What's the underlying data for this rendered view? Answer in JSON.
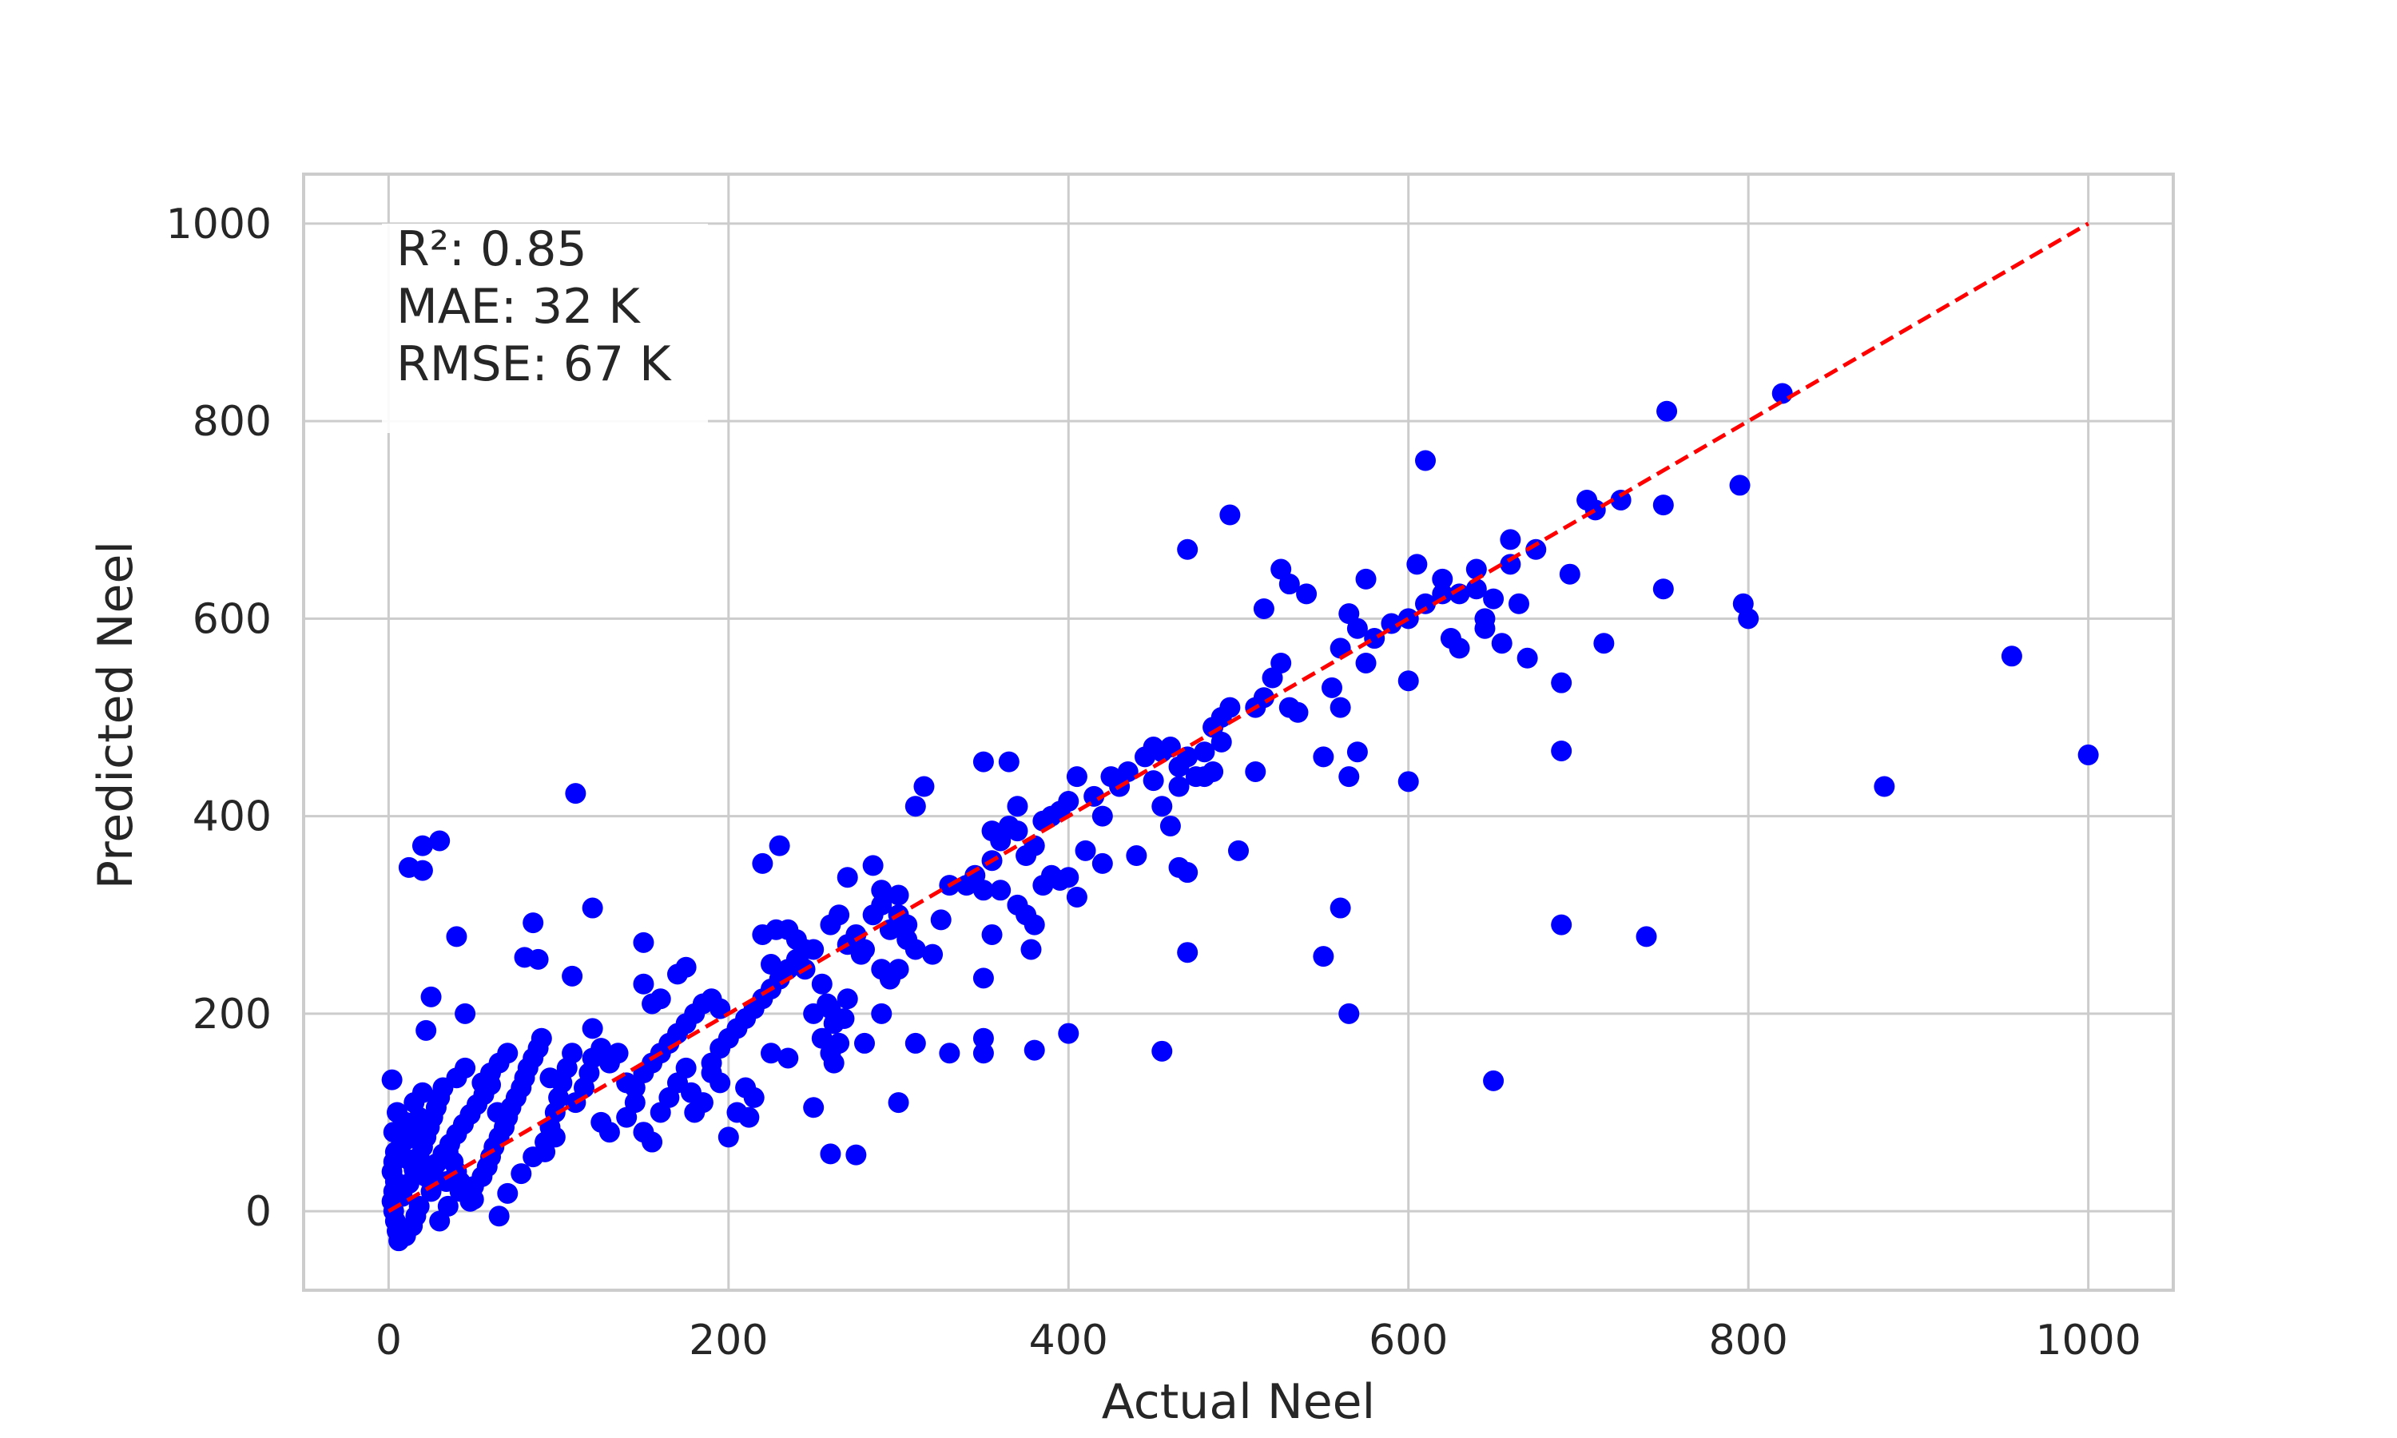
{
  "chart_data": {
    "type": "scatter",
    "xlabel": "Actual Neel",
    "ylabel": "Predicted Neel",
    "xlim": [
      -50,
      1050
    ],
    "ylim": [
      -80,
      1050
    ],
    "xticks": [
      0,
      200,
      400,
      600,
      800,
      1000
    ],
    "yticks": [
      0,
      200,
      400,
      600,
      800,
      1000
    ],
    "grid": true,
    "point_color": "#0000ff",
    "reference_line": {
      "x": [
        0,
        1000
      ],
      "y": [
        0,
        1000
      ],
      "color": "#ff0000",
      "style": "dashed"
    },
    "stats_box": {
      "position": "top-left",
      "lines": [
        "R²: 0.85",
        "MAE: 32 K",
        "RMSE: 67 K"
      ]
    },
    "points": [
      [
        30,
        375
      ],
      [
        20,
        370
      ],
      [
        12,
        348
      ],
      [
        20,
        345
      ],
      [
        110,
        423
      ],
      [
        40,
        278
      ],
      [
        120,
        307
      ],
      [
        85,
        292
      ],
      [
        80,
        257
      ],
      [
        88,
        255
      ],
      [
        108,
        238
      ],
      [
        25,
        217
      ],
      [
        45,
        200
      ],
      [
        22,
        183
      ],
      [
        2,
        133
      ],
      [
        5,
        100
      ],
      [
        3,
        80
      ],
      [
        4,
        60
      ],
      [
        3,
        50
      ],
      [
        2,
        40
      ],
      [
        4,
        30
      ],
      [
        3,
        20
      ],
      [
        2,
        10
      ],
      [
        3,
        0
      ],
      [
        4,
        -10
      ],
      [
        5,
        -20
      ],
      [
        6,
        -30
      ],
      [
        10,
        -25
      ],
      [
        14,
        -15
      ],
      [
        16,
        -5
      ],
      [
        18,
        5
      ],
      [
        8,
        15
      ],
      [
        12,
        28
      ],
      [
        15,
        42
      ],
      [
        18,
        55
      ],
      [
        20,
        65
      ],
      [
        22,
        75
      ],
      [
        24,
        85
      ],
      [
        26,
        95
      ],
      [
        28,
        105
      ],
      [
        30,
        115
      ],
      [
        32,
        125
      ],
      [
        20,
        120
      ],
      [
        15,
        110
      ],
      [
        10,
        90
      ],
      [
        8,
        70
      ],
      [
        35,
        60
      ],
      [
        38,
        50
      ],
      [
        40,
        40
      ],
      [
        42,
        30
      ],
      [
        45,
        20
      ],
      [
        48,
        10
      ],
      [
        50,
        25
      ],
      [
        55,
        35
      ],
      [
        58,
        45
      ],
      [
        60,
        55
      ],
      [
        62,
        65
      ],
      [
        65,
        75
      ],
      [
        68,
        85
      ],
      [
        70,
        95
      ],
      [
        72,
        105
      ],
      [
        75,
        115
      ],
      [
        78,
        125
      ],
      [
        80,
        135
      ],
      [
        82,
        145
      ],
      [
        85,
        155
      ],
      [
        88,
        165
      ],
      [
        90,
        175
      ],
      [
        55,
        130
      ],
      [
        60,
        140
      ],
      [
        65,
        150
      ],
      [
        70,
        160
      ],
      [
        40,
        135
      ],
      [
        45,
        145
      ],
      [
        30,
        -10
      ],
      [
        35,
        5
      ],
      [
        25,
        20
      ],
      [
        22,
        35
      ],
      [
        28,
        48
      ],
      [
        32,
        58
      ],
      [
        36,
        68
      ],
      [
        40,
        78
      ],
      [
        44,
        88
      ],
      [
        48,
        98
      ],
      [
        52,
        108
      ],
      [
        56,
        118
      ],
      [
        60,
        128
      ],
      [
        64,
        100
      ],
      [
        18,
        95
      ],
      [
        14,
        82
      ],
      [
        10,
        72
      ],
      [
        6,
        62
      ],
      [
        12,
        52
      ],
      [
        16,
        45
      ],
      [
        26,
        40
      ],
      [
        34,
        30
      ],
      [
        42,
        20
      ],
      [
        50,
        12
      ],
      [
        65,
        -5
      ],
      [
        70,
        18
      ],
      [
        78,
        38
      ],
      [
        85,
        55
      ],
      [
        92,
        70
      ],
      [
        95,
        85
      ],
      [
        98,
        100
      ],
      [
        100,
        115
      ],
      [
        102,
        130
      ],
      [
        105,
        145
      ],
      [
        108,
        160
      ],
      [
        110,
        110
      ],
      [
        115,
        125
      ],
      [
        118,
        140
      ],
      [
        120,
        155
      ],
      [
        95,
        135
      ],
      [
        92,
        60
      ],
      [
        98,
        75
      ],
      [
        120,
        185
      ],
      [
        125,
        165
      ],
      [
        130,
        150
      ],
      [
        135,
        160
      ],
      [
        140,
        130
      ],
      [
        145,
        125
      ],
      [
        150,
        140
      ],
      [
        155,
        150
      ],
      [
        160,
        160
      ],
      [
        165,
        170
      ],
      [
        170,
        180
      ],
      [
        175,
        190
      ],
      [
        180,
        200
      ],
      [
        185,
        210
      ],
      [
        190,
        215
      ],
      [
        195,
        205
      ],
      [
        150,
        230
      ],
      [
        155,
        210
      ],
      [
        160,
        215
      ],
      [
        150,
        272
      ],
      [
        170,
        240
      ],
      [
        175,
        247
      ],
      [
        125,
        90
      ],
      [
        130,
        80
      ],
      [
        140,
        95
      ],
      [
        145,
        110
      ],
      [
        150,
        80
      ],
      [
        155,
        70
      ],
      [
        160,
        100
      ],
      [
        165,
        115
      ],
      [
        170,
        130
      ],
      [
        175,
        145
      ],
      [
        178,
        120
      ],
      [
        180,
        100
      ],
      [
        185,
        110
      ],
      [
        190,
        150
      ],
      [
        195,
        165
      ],
      [
        200,
        175
      ],
      [
        205,
        185
      ],
      [
        210,
        195
      ],
      [
        215,
        205
      ],
      [
        220,
        215
      ],
      [
        225,
        225
      ],
      [
        230,
        235
      ],
      [
        235,
        245
      ],
      [
        240,
        255
      ],
      [
        245,
        265
      ],
      [
        190,
        140
      ],
      [
        195,
        130
      ],
      [
        200,
        75
      ],
      [
        205,
        100
      ],
      [
        210,
        125
      ],
      [
        212,
        95
      ],
      [
        215,
        115
      ],
      [
        220,
        280
      ],
      [
        225,
        250
      ],
      [
        228,
        285
      ],
      [
        230,
        370
      ],
      [
        235,
        285
      ],
      [
        220,
        352
      ],
      [
        240,
        275
      ],
      [
        245,
        245
      ],
      [
        250,
        265
      ],
      [
        255,
        230
      ],
      [
        258,
        210
      ],
      [
        260,
        205
      ],
      [
        262,
        190
      ],
      [
        265,
        170
      ],
      [
        268,
        195
      ],
      [
        270,
        215
      ],
      [
        250,
        200
      ],
      [
        255,
        175
      ],
      [
        260,
        160
      ],
      [
        262,
        150
      ],
      [
        225,
        160
      ],
      [
        235,
        155
      ],
      [
        250,
        105
      ],
      [
        260,
        58
      ],
      [
        275,
        57
      ],
      [
        260,
        290
      ],
      [
        265,
        300
      ],
      [
        270,
        270
      ],
      [
        275,
        280
      ],
      [
        280,
        265
      ],
      [
        285,
        300
      ],
      [
        290,
        310
      ],
      [
        295,
        285
      ],
      [
        300,
        300
      ],
      [
        305,
        275
      ],
      [
        310,
        265
      ],
      [
        270,
        338
      ],
      [
        285,
        350
      ],
      [
        290,
        325
      ],
      [
        300,
        320
      ],
      [
        305,
        290
      ],
      [
        278,
        260
      ],
      [
        290,
        245
      ],
      [
        295,
        235
      ],
      [
        300,
        245
      ],
      [
        290,
        200
      ],
      [
        280,
        170
      ],
      [
        300,
        110
      ],
      [
        310,
        170
      ],
      [
        320,
        260
      ],
      [
        325,
        295
      ],
      [
        330,
        330
      ],
      [
        310,
        410
      ],
      [
        315,
        430
      ],
      [
        330,
        160
      ],
      [
        340,
        330
      ],
      [
        345,
        340
      ],
      [
        350,
        325
      ],
      [
        355,
        355
      ],
      [
        360,
        375
      ],
      [
        365,
        390
      ],
      [
        370,
        385
      ],
      [
        375,
        360
      ],
      [
        380,
        370
      ],
      [
        385,
        395
      ],
      [
        390,
        400
      ],
      [
        395,
        405
      ],
      [
        400,
        415
      ],
      [
        405,
        440
      ],
      [
        410,
        365
      ],
      [
        415,
        420
      ],
      [
        420,
        400
      ],
      [
        425,
        440
      ],
      [
        430,
        430
      ],
      [
        435,
        445
      ],
      [
        440,
        360
      ],
      [
        350,
        455
      ],
      [
        365,
        455
      ],
      [
        370,
        410
      ],
      [
        355,
        385
      ],
      [
        350,
        175
      ],
      [
        350,
        160
      ],
      [
        350,
        236
      ],
      [
        355,
        280
      ],
      [
        360,
        325
      ],
      [
        370,
        310
      ],
      [
        375,
        300
      ],
      [
        378,
        265
      ],
      [
        380,
        290
      ],
      [
        385,
        330
      ],
      [
        390,
        340
      ],
      [
        395,
        335
      ],
      [
        400,
        180
      ],
      [
        380,
        163
      ],
      [
        400,
        338
      ],
      [
        405,
        318
      ],
      [
        420,
        352
      ],
      [
        445,
        460
      ],
      [
        450,
        470
      ],
      [
        455,
        465
      ],
      [
        460,
        470
      ],
      [
        465,
        450
      ],
      [
        470,
        460
      ],
      [
        475,
        440
      ],
      [
        480,
        465
      ],
      [
        485,
        490
      ],
      [
        490,
        500
      ],
      [
        495,
        510
      ],
      [
        450,
        436
      ],
      [
        455,
        410
      ],
      [
        460,
        390
      ],
      [
        465,
        430
      ],
      [
        470,
        343
      ],
      [
        465,
        348
      ],
      [
        470,
        262
      ],
      [
        455,
        162
      ],
      [
        480,
        440
      ],
      [
        485,
        445
      ],
      [
        490,
        475
      ],
      [
        470,
        670
      ],
      [
        495,
        705
      ],
      [
        500,
        365
      ],
      [
        510,
        510
      ],
      [
        515,
        520
      ],
      [
        520,
        540
      ],
      [
        525,
        555
      ],
      [
        530,
        510
      ],
      [
        535,
        505
      ],
      [
        510,
        445
      ],
      [
        515,
        610
      ],
      [
        525,
        650
      ],
      [
        530,
        635
      ],
      [
        540,
        625
      ],
      [
        550,
        460
      ],
      [
        555,
        530
      ],
      [
        560,
        510
      ],
      [
        565,
        605
      ],
      [
        570,
        590
      ],
      [
        575,
        640
      ],
      [
        580,
        580
      ],
      [
        590,
        595
      ],
      [
        560,
        570
      ],
      [
        565,
        440
      ],
      [
        570,
        465
      ],
      [
        575,
        555
      ],
      [
        600,
        600
      ],
      [
        610,
        615
      ],
      [
        620,
        625
      ],
      [
        625,
        580
      ],
      [
        630,
        570
      ],
      [
        640,
        630
      ],
      [
        645,
        600
      ],
      [
        600,
        537
      ],
      [
        605,
        655
      ],
      [
        610,
        760
      ],
      [
        620,
        640
      ],
      [
        630,
        625
      ],
      [
        640,
        650
      ],
      [
        645,
        590
      ],
      [
        650,
        620
      ],
      [
        655,
        575
      ],
      [
        660,
        655
      ],
      [
        660,
        680
      ],
      [
        665,
        615
      ],
      [
        670,
        560
      ],
      [
        675,
        670
      ],
      [
        690,
        535
      ],
      [
        695,
        645
      ],
      [
        705,
        720
      ],
      [
        710,
        710
      ],
      [
        715,
        575
      ],
      [
        725,
        720
      ],
      [
        750,
        715
      ],
      [
        750,
        630
      ],
      [
        752,
        810
      ],
      [
        795,
        735
      ],
      [
        797,
        615
      ],
      [
        800,
        600
      ],
      [
        820,
        828
      ],
      [
        550,
        258
      ],
      [
        560,
        307
      ],
      [
        565,
        200
      ],
      [
        600,
        435
      ],
      [
        690,
        290
      ],
      [
        690,
        466
      ],
      [
        740,
        278
      ],
      [
        650,
        132
      ],
      [
        880,
        430
      ],
      [
        955,
        562
      ],
      [
        1000,
        462
      ]
    ]
  }
}
